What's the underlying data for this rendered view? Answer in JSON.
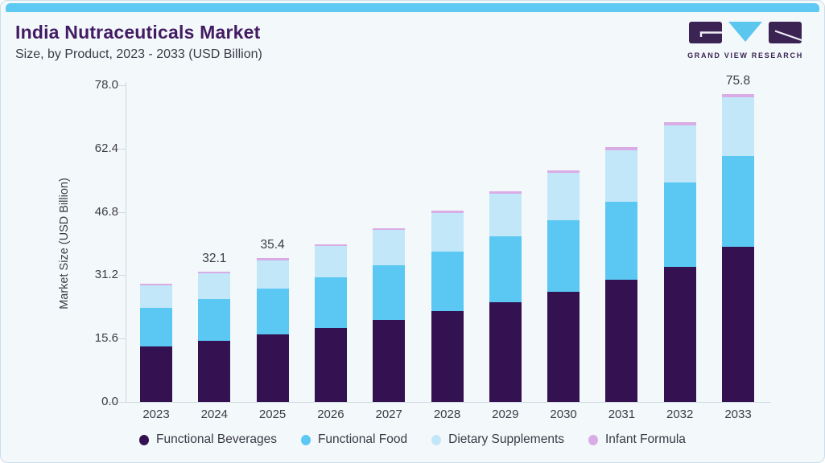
{
  "page": {
    "background": "#f3f8fb",
    "border_color": "#ccdde8",
    "accent_color": "#5ec9f2"
  },
  "header": {
    "title": "India Nutraceuticals Market",
    "subtitle": "Size, by Product, 2023 - 2033 (USD Billion)"
  },
  "logo": {
    "text": "GRAND VIEW RESEARCH",
    "purple": "#3b2353",
    "blue": "#5bc6ee"
  },
  "chart_data": {
    "type": "bar",
    "stacked": true,
    "title": "India Nutraceuticals Market Size, by Product, 2023 - 2033 (USD Billion)",
    "ylabel": "Market Size (USD Billion)",
    "xlabel": "",
    "ylim": [
      0,
      78
    ],
    "ytick_labels": [
      "78.0",
      "62.4",
      "46.8",
      "31.2",
      "15.6",
      "0.0"
    ],
    "ytick_values": [
      78,
      62.4,
      46.8,
      31.2,
      15.6,
      0
    ],
    "grid": false,
    "legend_position": "bottom",
    "categories": [
      "2023",
      "2024",
      "2025",
      "2026",
      "2027",
      "2028",
      "2029",
      "2030",
      "2031",
      "2032",
      "2033"
    ],
    "series": [
      {
        "name": "Functional Beverages",
        "color": "#341150",
        "values": [
          13.7,
          15.0,
          16.6,
          18.3,
          20.2,
          22.3,
          24.6,
          27.2,
          30.0,
          33.2,
          38.3
        ]
      },
      {
        "name": "Functional Food",
        "color": "#5bc8f3",
        "values": [
          9.5,
          10.3,
          11.3,
          12.3,
          13.5,
          14.7,
          16.1,
          17.6,
          19.2,
          20.9,
          22.2
        ]
      },
      {
        "name": "Dietary Supplements",
        "color": "#c2e7f9",
        "values": [
          5.5,
          6.3,
          7.0,
          7.8,
          8.6,
          9.5,
          10.5,
          11.6,
          12.8,
          14.1,
          14.6
        ]
      },
      {
        "name": "Infant Formula",
        "color": "#d9ace6",
        "values": [
          0.4,
          0.5,
          0.5,
          0.5,
          0.5,
          0.6,
          0.6,
          0.6,
          0.7,
          0.7,
          0.7
        ]
      }
    ],
    "totals": [
      29.1,
      32.1,
      35.4,
      38.9,
      42.8,
      47.1,
      51.8,
      57.0,
      62.7,
      68.9,
      75.8
    ],
    "shown_total_labels": [
      "",
      "32.1",
      "35.4",
      "",
      "",
      "",
      "",
      "",
      "",
      "",
      "75.8"
    ]
  }
}
